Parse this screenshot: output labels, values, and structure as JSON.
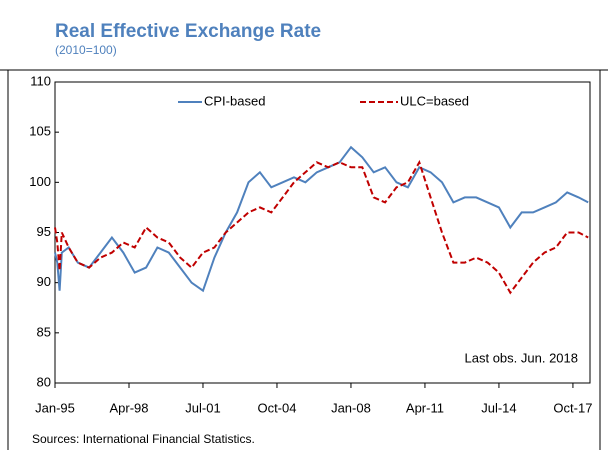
{
  "chart_data": {
    "type": "line",
    "title": "Real Effective Exchange Rate",
    "subtitle": "(2010=100)",
    "annotation": "Last obs. Jun. 2018",
    "source": "Sources: International Financial Statistics.",
    "x": [
      1995.0,
      1995.1,
      1995.2,
      1995.3,
      1995.6,
      1996.0,
      1996.5,
      1997.0,
      1997.5,
      1998.0,
      1998.5,
      1999.0,
      1999.5,
      2000.0,
      2000.5,
      2001.0,
      2001.5,
      2002.0,
      2002.5,
      2003.0,
      2003.5,
      2004.0,
      2004.5,
      2005.0,
      2005.5,
      2006.0,
      2006.5,
      2007.0,
      2007.5,
      2008.0,
      2008.5,
      2009.0,
      2009.5,
      2010.0,
      2010.5,
      2011.0,
      2011.5,
      2012.0,
      2012.5,
      2013.0,
      2013.5,
      2014.0,
      2014.5,
      2015.0,
      2015.5,
      2016.0,
      2016.5,
      2017.0,
      2017.5,
      2018.0,
      2018.42
    ],
    "series": [
      {
        "name": "CPI-based",
        "color": "#4f81bd",
        "dashed": false,
        "values": [
          93,
          92,
          89.2,
          93,
          93.5,
          92,
          91.5,
          93,
          94.5,
          93,
          91,
          91.5,
          93.5,
          93,
          91.5,
          90,
          89.2,
          92.5,
          95,
          97,
          100,
          101,
          99.5,
          100,
          100.5,
          100,
          101,
          101.5,
          102,
          103.5,
          102.5,
          101,
          101.5,
          100,
          99.5,
          101.5,
          101,
          100,
          98,
          98.5,
          98.5,
          98,
          97.5,
          95.5,
          97,
          97,
          97.5,
          98,
          99,
          98.5,
          98
        ]
      },
      {
        "name": "ULC=based",
        "color": "#c00000",
        "dashed": true,
        "values": [
          95.5,
          94,
          91.2,
          95,
          93.5,
          92,
          91.5,
          92.5,
          93,
          94,
          93.5,
          95.5,
          94.5,
          94,
          92.5,
          91.5,
          93,
          93.5,
          95,
          96,
          97,
          97.5,
          97,
          98.5,
          100,
          101,
          102,
          101.5,
          102,
          101.5,
          101.5,
          98.5,
          98,
          99.5,
          100,
          102,
          98.5,
          95,
          92,
          92,
          92.5,
          92,
          91,
          89,
          90.5,
          92,
          93,
          93.5,
          95,
          95,
          94.5
        ]
      }
    ],
    "xlim": [
      1995,
      2018.5
    ],
    "xticks": [
      {
        "value": 1995.0,
        "label": "Jan-95"
      },
      {
        "value": 1998.25,
        "label": "Apr-98"
      },
      {
        "value": 2001.5,
        "label": "Jul-01"
      },
      {
        "value": 2004.75,
        "label": "Oct-04"
      },
      {
        "value": 2008.0,
        "label": "Jan-08"
      },
      {
        "value": 2011.25,
        "label": "Apr-11"
      },
      {
        "value": 2014.5,
        "label": "Jul-14"
      },
      {
        "value": 2017.75,
        "label": "Oct-17"
      }
    ],
    "ylim": [
      80,
      110
    ],
    "yticks": [
      80,
      85,
      90,
      95,
      100,
      105,
      110
    ],
    "grid": false,
    "legend": "top"
  }
}
